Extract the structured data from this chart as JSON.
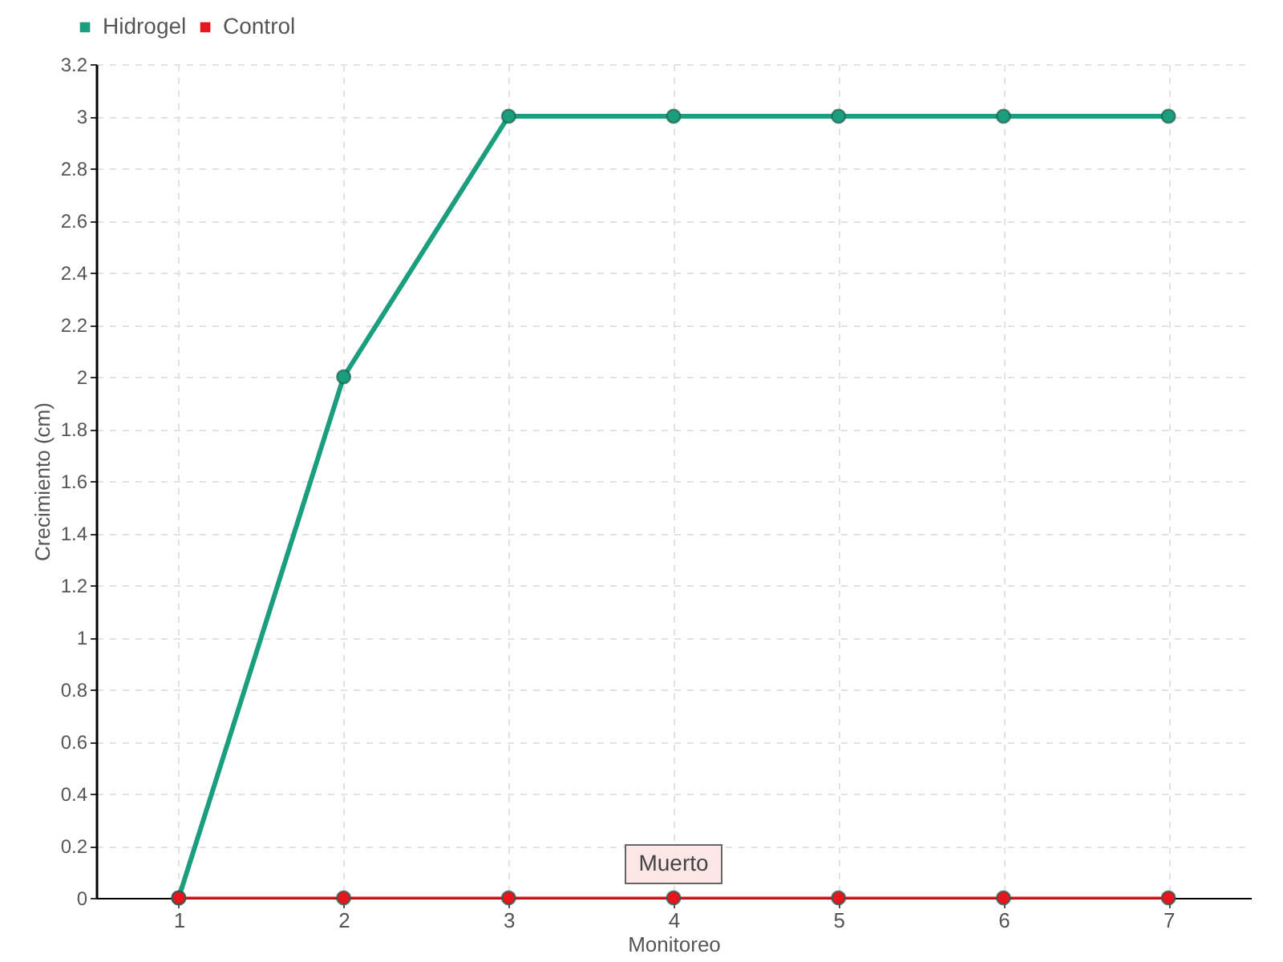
{
  "chart_data": {
    "type": "line",
    "xlabel": "Monitoreo",
    "ylabel": "Crecimiento (cm)",
    "categories": [
      "1",
      "2",
      "3",
      "4",
      "5",
      "6",
      "7"
    ],
    "series": [
      {
        "name": "Hidrogel",
        "color": "#1a9e7e",
        "values": [
          0,
          2,
          3,
          3,
          3,
          3,
          3
        ]
      },
      {
        "name": "Control",
        "color": "#e8141e",
        "values": [
          0,
          0,
          0,
          0,
          0,
          0,
          0
        ]
      }
    ],
    "ylim": [
      0,
      3.2
    ],
    "yticks": [
      0,
      0.2,
      0.4,
      0.6,
      0.8,
      1,
      1.2,
      1.4,
      1.6,
      1.8,
      2,
      2.2,
      2.4,
      2.6,
      2.8,
      3,
      3.2
    ],
    "grid": true,
    "legend": "top left",
    "marker": "circle",
    "line_style": "solid",
    "annotations": [
      {
        "text": "Muerto",
        "x": "4",
        "y": 0
      }
    ]
  }
}
